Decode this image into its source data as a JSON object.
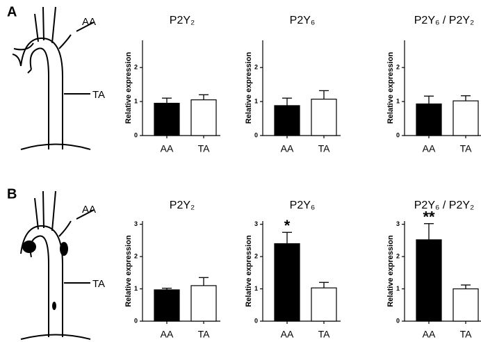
{
  "panels": [
    {
      "label": "A",
      "diagram_labels": [
        "AA",
        "TA"
      ]
    },
    {
      "label": "B",
      "diagram_labels": [
        "AA",
        "TA"
      ]
    }
  ],
  "chart_data": [
    {
      "type": "bar",
      "title": "P2Y₂",
      "ylabel": "Relative expression",
      "categories": [
        "AA",
        "TA"
      ],
      "values": [
        0.95,
        1.05
      ],
      "errors": [
        0.15,
        0.15
      ],
      "colors": [
        "#000000",
        "#ffffff"
      ],
      "ylim": [
        0,
        2.8
      ],
      "yticks": [
        0,
        1,
        2
      ]
    },
    {
      "type": "bar",
      "title": "P2Y₆",
      "ylabel": "Relative expression",
      "categories": [
        "AA",
        "TA"
      ],
      "values": [
        0.88,
        1.07
      ],
      "errors": [
        0.22,
        0.25
      ],
      "colors": [
        "#000000",
        "#ffffff"
      ],
      "ylim": [
        0,
        2.8
      ],
      "yticks": [
        0,
        1,
        2
      ]
    },
    {
      "type": "bar",
      "title": "P2Y₆ / P2Y₂",
      "ylabel": "Relative expression",
      "categories": [
        "AA",
        "TA"
      ],
      "values": [
        0.93,
        1.02
      ],
      "errors": [
        0.23,
        0.15
      ],
      "colors": [
        "#000000",
        "#ffffff"
      ],
      "ylim": [
        0,
        2.8
      ],
      "yticks": [
        0,
        1,
        2
      ]
    },
    {
      "type": "bar",
      "title": "P2Y₂",
      "ylabel": "Relative expression",
      "categories": [
        "AA",
        "TA"
      ],
      "values": [
        0.97,
        1.1
      ],
      "errors": [
        0.05,
        0.25
      ],
      "colors": [
        "#000000",
        "#ffffff"
      ],
      "ylim": [
        0,
        3.1
      ],
      "yticks": [
        0,
        1,
        2,
        3
      ]
    },
    {
      "type": "bar",
      "title": "P2Y₆",
      "ylabel": "Relative expression",
      "categories": [
        "AA",
        "TA"
      ],
      "values": [
        2.4,
        1.03
      ],
      "errors": [
        0.35,
        0.17
      ],
      "significance": [
        "*",
        null
      ],
      "colors": [
        "#000000",
        "#ffffff"
      ],
      "ylim": [
        0,
        3.1
      ],
      "yticks": [
        0,
        1,
        2,
        3
      ]
    },
    {
      "type": "bar",
      "title": "P2Y₆ / P2Y₂",
      "ylabel": "Relative expression",
      "categories": [
        "AA",
        "TA"
      ],
      "values": [
        2.52,
        1.0
      ],
      "errors": [
        0.5,
        0.12
      ],
      "significance": [
        "**",
        null
      ],
      "colors": [
        "#000000",
        "#ffffff"
      ],
      "ylim": [
        0,
        3.1
      ],
      "yticks": [
        0,
        1,
        2,
        3
      ]
    }
  ]
}
